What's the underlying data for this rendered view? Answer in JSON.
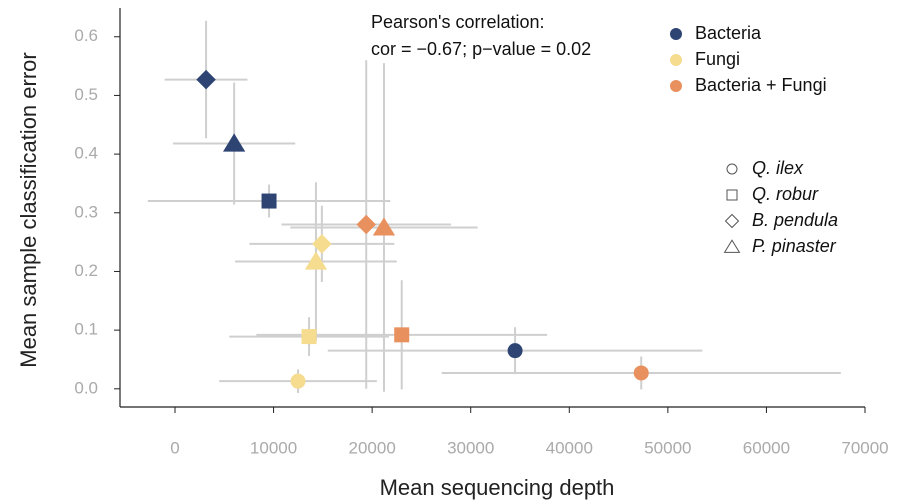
{
  "chart_data": {
    "type": "scatter",
    "xlabel": "Mean sequencing depth",
    "ylabel": "Mean sample classification error",
    "annotation": [
      "Pearson's correlation:",
      "cor = −0.67; p−value = 0.02"
    ],
    "xlim": [
      -5580,
      70000
    ],
    "ylim": [
      -0.031,
      0.649
    ],
    "xticks": [
      0,
      10000,
      20000,
      30000,
      40000,
      50000,
      60000,
      70000
    ],
    "yticks": [
      {
        "value": 0,
        "label": "0.0"
      },
      0.1,
      0.2,
      0.3,
      0.4,
      0.5,
      0.6
    ],
    "shapes": {
      "labels": [
        "Q. ilex",
        "Q. robur",
        "B. pendula",
        "P. pinaster"
      ],
      "markers": [
        "circle",
        "square",
        "diamond",
        "triangle"
      ]
    },
    "series": [
      {
        "name": "Bacteria",
        "color": "#2e4473",
        "x": [
          34500,
          9540,
          3150,
          6000
        ],
        "values": [
          0.065,
          0.32,
          0.527,
          0.418
        ],
        "xerr": [
          19000,
          12300,
          4200,
          6200
        ],
        "yerr": [
          0.04,
          0.028,
          0.1,
          0.104
        ]
      },
      {
        "name": "Fungi",
        "color": "#f5dc8f",
        "x": [
          12480,
          13600,
          14900,
          14300
        ],
        "values": [
          0.013,
          0.089,
          0.247,
          0.217
        ],
        "xerr": [
          8000,
          8100,
          7350,
          8200
        ],
        "yerr": [
          0.02,
          0.033,
          0.065,
          0.135
        ]
      },
      {
        "name": "Bacteria + Fungi",
        "color": "#e8915f",
        "x": [
          47300,
          23000,
          19400,
          21200
        ],
        "values": [
          0.027,
          0.092,
          0.28,
          0.275
        ],
        "xerr": [
          20250,
          14750,
          8600,
          9500
        ],
        "yerr": [
          0.028,
          0.093,
          0.28,
          0.28
        ]
      }
    ]
  }
}
